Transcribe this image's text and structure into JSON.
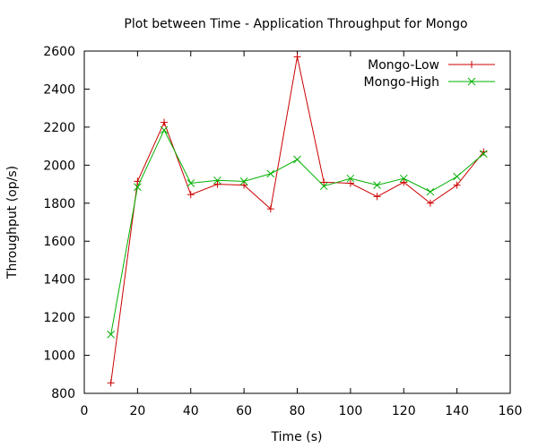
{
  "chart_data": {
    "type": "line",
    "title": "Plot between Time - Application Throughput for Mongo",
    "xlabel": "Time (s)",
    "ylabel": "Throughput (op/s)",
    "xlim": [
      0,
      160
    ],
    "ylim": [
      800,
      2600
    ],
    "xticks": [
      0,
      20,
      40,
      60,
      80,
      100,
      120,
      140,
      160
    ],
    "yticks": [
      800,
      1000,
      1200,
      1400,
      1600,
      1800,
      2000,
      2200,
      2400,
      2600
    ],
    "grid": false,
    "legend_position": "top-right",
    "series": [
      {
        "name": "Mongo-Low",
        "color": "#cc0000",
        "marker": "plus",
        "x": [
          10,
          20,
          30,
          40,
          50,
          60,
          70,
          80,
          90,
          100,
          110,
          120,
          130,
          140,
          150
        ],
        "y": [
          855,
          1915,
          2225,
          1845,
          1900,
          1895,
          1770,
          2570,
          1910,
          1905,
          1835,
          1910,
          1800,
          1895,
          2070
        ]
      },
      {
        "name": "Mongo-High",
        "color": "#00b000",
        "marker": "x",
        "x": [
          10,
          20,
          30,
          40,
          50,
          60,
          70,
          80,
          90,
          100,
          110,
          120,
          130,
          140,
          150
        ],
        "y": [
          1110,
          1885,
          2185,
          1905,
          1920,
          1915,
          1955,
          2030,
          1890,
          1930,
          1895,
          1930,
          1860,
          1940,
          2060
        ]
      }
    ]
  }
}
